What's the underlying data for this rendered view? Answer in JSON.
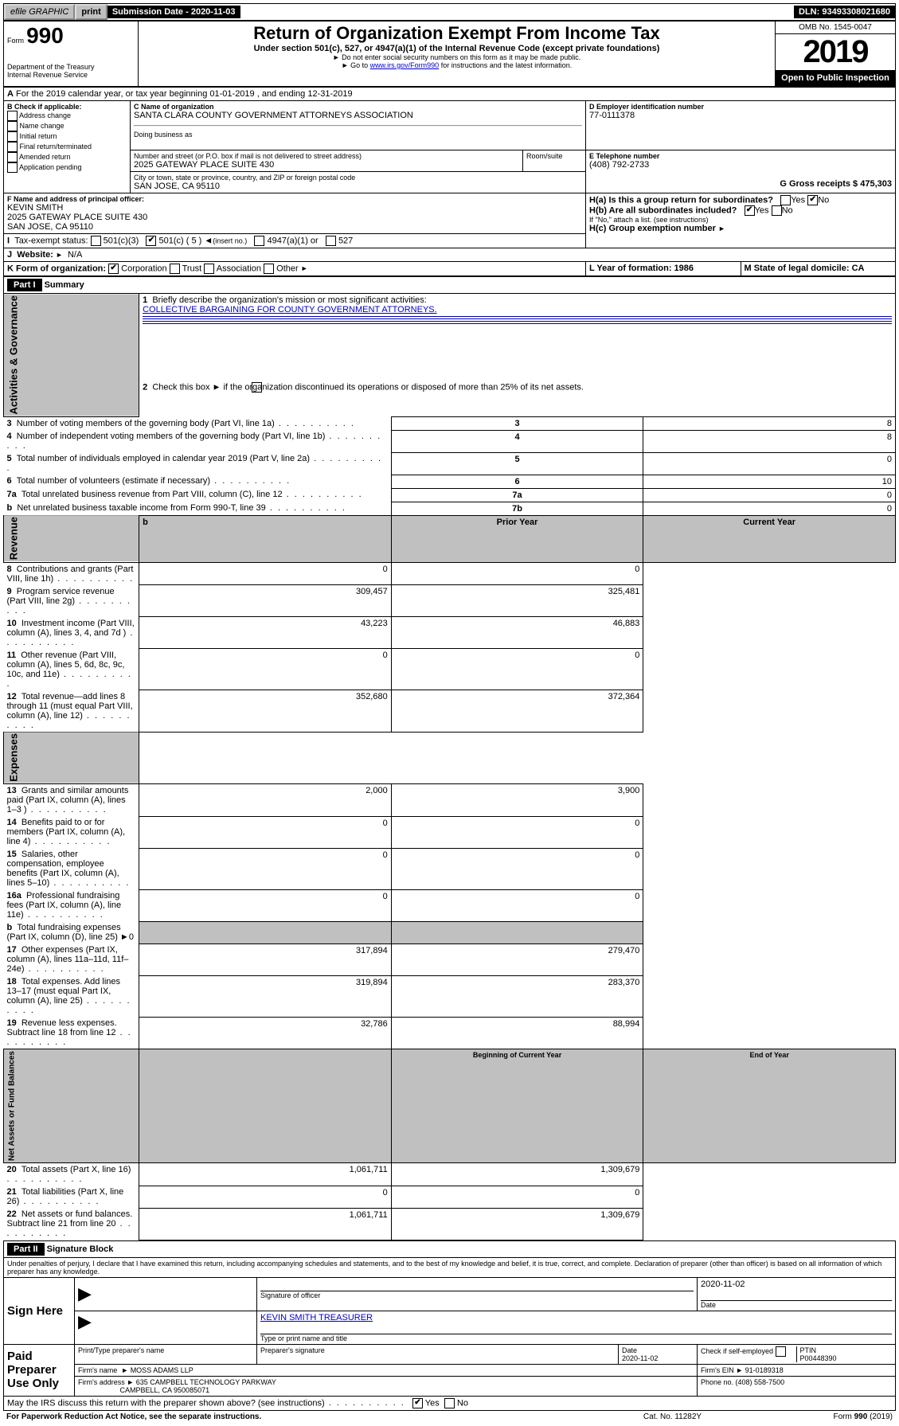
{
  "topbar": {
    "efile": "efile GRAPHIC",
    "print": "print",
    "sub_date": "Submission Date - 2020-11-03",
    "dln": "DLN: 93493308021680"
  },
  "header": {
    "form_label": "Form",
    "form_number": "990",
    "dept": "Department of the Treasury\nInternal Revenue Service",
    "title": "Return of Organization Exempt From Income Tax",
    "subtitle": "Under section 501(c), 527, or 4947(a)(1) of the Internal Revenue Code (except private foundations)",
    "note1": "Do not enter social security numbers on this form as it may be made public.",
    "note2_prefix": "Go to ",
    "note2_link": "www.irs.gov/Form990",
    "note2_suffix": " for instructions and the latest information.",
    "omb": "OMB No. 1545-0047",
    "year": "2019",
    "open": "Open to Public Inspection"
  },
  "lineA": "For the 2019 calendar year, or tax year beginning 01-01-2019   , and ending 12-31-2019",
  "sectionB": {
    "label": "B Check if applicable:",
    "opts": [
      "Address change",
      "Name change",
      "Initial return",
      "Final return/terminated",
      "Amended return",
      "Application pending"
    ]
  },
  "sectionC": {
    "c_label": "C Name of organization",
    "c_name": "SANTA CLARA COUNTY GOVERNMENT ATTORNEYS ASSOCIATION",
    "dba_label": "Doing business as",
    "addr_label": "Number and street (or P.O. box if mail is not delivered to street address)",
    "addr": "2025 GATEWAY PLACE SUITE 430",
    "room_label": "Room/suite",
    "city_label": "City or town, state or province, country, and ZIP or foreign postal code",
    "city": "SAN JOSE, CA  95110"
  },
  "sectionD": {
    "label": "D Employer identification number",
    "value": "77-0111378"
  },
  "sectionE": {
    "label": "E Telephone number",
    "value": "(408) 792-2733"
  },
  "sectionG": {
    "label": "G Gross receipts $ 475,303"
  },
  "sectionF": {
    "label": "F  Name and address of principal officer:",
    "name": "KEVIN SMITH",
    "addr1": "2025 GATEWAY PLACE SUITE 430",
    "addr2": "SAN JOSE, CA  95110"
  },
  "sectionH": {
    "ha": "H(a)  Is this a group return for subordinates?",
    "hb": "H(b)  Are all subordinates included?",
    "hb_note": "If \"No,\" attach a list. (see instructions)",
    "hc": "H(c)  Group exemption number",
    "yes": "Yes",
    "no": "No"
  },
  "sectionI": {
    "label": "Tax-exempt status:",
    "o1": "501(c)(3)",
    "o2": "501(c) ( 5 )",
    "o2b": "(insert no.)",
    "o3": "4947(a)(1) or",
    "o4": "527"
  },
  "sectionJ": {
    "label": "Website:",
    "value": "N/A"
  },
  "sectionK": {
    "label": "K Form of organization:",
    "corp": "Corporation",
    "trust": "Trust",
    "assoc": "Association",
    "other": "Other"
  },
  "sectionL": {
    "label": "L Year of formation: 1986"
  },
  "sectionM": {
    "label": "M State of legal domicile: CA"
  },
  "part1": {
    "header": "Part I",
    "title": "Summary",
    "q1": "Briefly describe the organization's mission or most significant activities:",
    "q1_ans": "COLLECTIVE BARGAINING FOR COUNTY GOVERNMENT ATTORNEYS.",
    "q2": "Check this box ►       if the organization discontinued its operations or disposed of more than 25% of its net assets.",
    "rows_governance": [
      {
        "n": "3",
        "t": "Number of voting members of the governing body (Part VI, line 1a)",
        "l": "3",
        "v": "8"
      },
      {
        "n": "4",
        "t": "Number of independent voting members of the governing body (Part VI, line 1b)",
        "l": "4",
        "v": "8"
      },
      {
        "n": "5",
        "t": "Total number of individuals employed in calendar year 2019 (Part V, line 2a)",
        "l": "5",
        "v": "0"
      },
      {
        "n": "6",
        "t": "Total number of volunteers (estimate if necessary)",
        "l": "6",
        "v": "10"
      },
      {
        "n": "7a",
        "t": "Total unrelated business revenue from Part VIII, column (C), line 12",
        "l": "7a",
        "v": "0"
      },
      {
        "n": "b",
        "t": "Net unrelated business taxable income from Form 990-T, line 39",
        "l": "7b",
        "v": "0"
      }
    ],
    "col_prior": "Prior Year",
    "col_current": "Current Year",
    "rows_revenue": [
      {
        "n": "8",
        "t": "Contributions and grants (Part VIII, line 1h)",
        "p": "0",
        "c": "0"
      },
      {
        "n": "9",
        "t": "Program service revenue (Part VIII, line 2g)",
        "p": "309,457",
        "c": "325,481"
      },
      {
        "n": "10",
        "t": "Investment income (Part VIII, column (A), lines 3, 4, and 7d )",
        "p": "43,223",
        "c": "46,883"
      },
      {
        "n": "11",
        "t": "Other revenue (Part VIII, column (A), lines 5, 6d, 8c, 9c, 10c, and 11e)",
        "p": "0",
        "c": "0"
      },
      {
        "n": "12",
        "t": "Total revenue—add lines 8 through 11 (must equal Part VIII, column (A), line 12)",
        "p": "352,680",
        "c": "372,364"
      }
    ],
    "rows_expenses": [
      {
        "n": "13",
        "t": "Grants and similar amounts paid (Part IX, column (A), lines 1–3 )",
        "p": "2,000",
        "c": "3,900"
      },
      {
        "n": "14",
        "t": "Benefits paid to or for members (Part IX, column (A), line 4)",
        "p": "0",
        "c": "0"
      },
      {
        "n": "15",
        "t": "Salaries, other compensation, employee benefits (Part IX, column (A), lines 5–10)",
        "p": "0",
        "c": "0"
      },
      {
        "n": "16a",
        "t": "Professional fundraising fees (Part IX, column (A), line 11e)",
        "p": "0",
        "c": "0"
      },
      {
        "n": "b",
        "t": "Total fundraising expenses (Part IX, column (D), line 25) ►0",
        "p": "",
        "c": "",
        "gray": true
      },
      {
        "n": "17",
        "t": "Other expenses (Part IX, column (A), lines 11a–11d, 11f–24e)",
        "p": "317,894",
        "c": "279,470"
      },
      {
        "n": "18",
        "t": "Total expenses. Add lines 13–17 (must equal Part IX, column (A), line 25)",
        "p": "319,894",
        "c": "283,370"
      },
      {
        "n": "19",
        "t": "Revenue less expenses. Subtract line 18 from line 12",
        "p": "32,786",
        "c": "88,994"
      }
    ],
    "col_begin": "Beginning of Current Year",
    "col_end": "End of Year",
    "rows_assets": [
      {
        "n": "20",
        "t": "Total assets (Part X, line 16)",
        "p": "1,061,711",
        "c": "1,309,679"
      },
      {
        "n": "21",
        "t": "Total liabilities (Part X, line 26)",
        "p": "0",
        "c": "0"
      },
      {
        "n": "22",
        "t": "Net assets or fund balances. Subtract line 21 from line 20",
        "p": "1,061,711",
        "c": "1,309,679"
      }
    ],
    "side_gov": "Activities & Governance",
    "side_rev": "Revenue",
    "side_exp": "Expenses",
    "side_net": "Net Assets or Fund Balances"
  },
  "part2": {
    "header": "Part II",
    "title": "Signature Block",
    "perjury": "Under penalties of perjury, I declare that I have examined this return, including accompanying schedules and statements, and to the best of my knowledge and belief, it is true, correct, and complete. Declaration of preparer (other than officer) is based on all information of which preparer has any knowledge.",
    "sign_here": "Sign Here",
    "sig_officer": "Signature of officer",
    "sig_date": "2020-11-02",
    "date_label": "Date",
    "officer_name": "KEVIN SMITH TREASURER",
    "type_name": "Type or print name and title",
    "paid": "Paid Preparer Use Only",
    "col_prep": "Print/Type preparer's name",
    "col_sig": "Preparer's signature",
    "col_date": "Date",
    "date_val": "2020-11-02",
    "check_se": "Check        if self-employed",
    "ptin_label": "PTIN",
    "ptin": "P00448390",
    "firm_name_l": "Firm's name",
    "firm_name": "MOSS ADAMS LLP",
    "firm_ein_l": "Firm's EIN",
    "firm_ein": "91-0189318",
    "firm_addr_l": "Firm's address",
    "firm_addr": "635 CAMPBELL TECHNOLOGY PARKWAY",
    "firm_city": "CAMPBELL, CA  950085071",
    "phone_l": "Phone no. (408) 558-7500",
    "discuss": "May the IRS discuss this return with the preparer shown above? (see instructions)",
    "yes": "Yes",
    "no": "No"
  },
  "footer": {
    "pra": "For Paperwork Reduction Act Notice, see the separate instructions.",
    "cat": "Cat. No. 11282Y",
    "form": "Form 990 (2019)"
  }
}
